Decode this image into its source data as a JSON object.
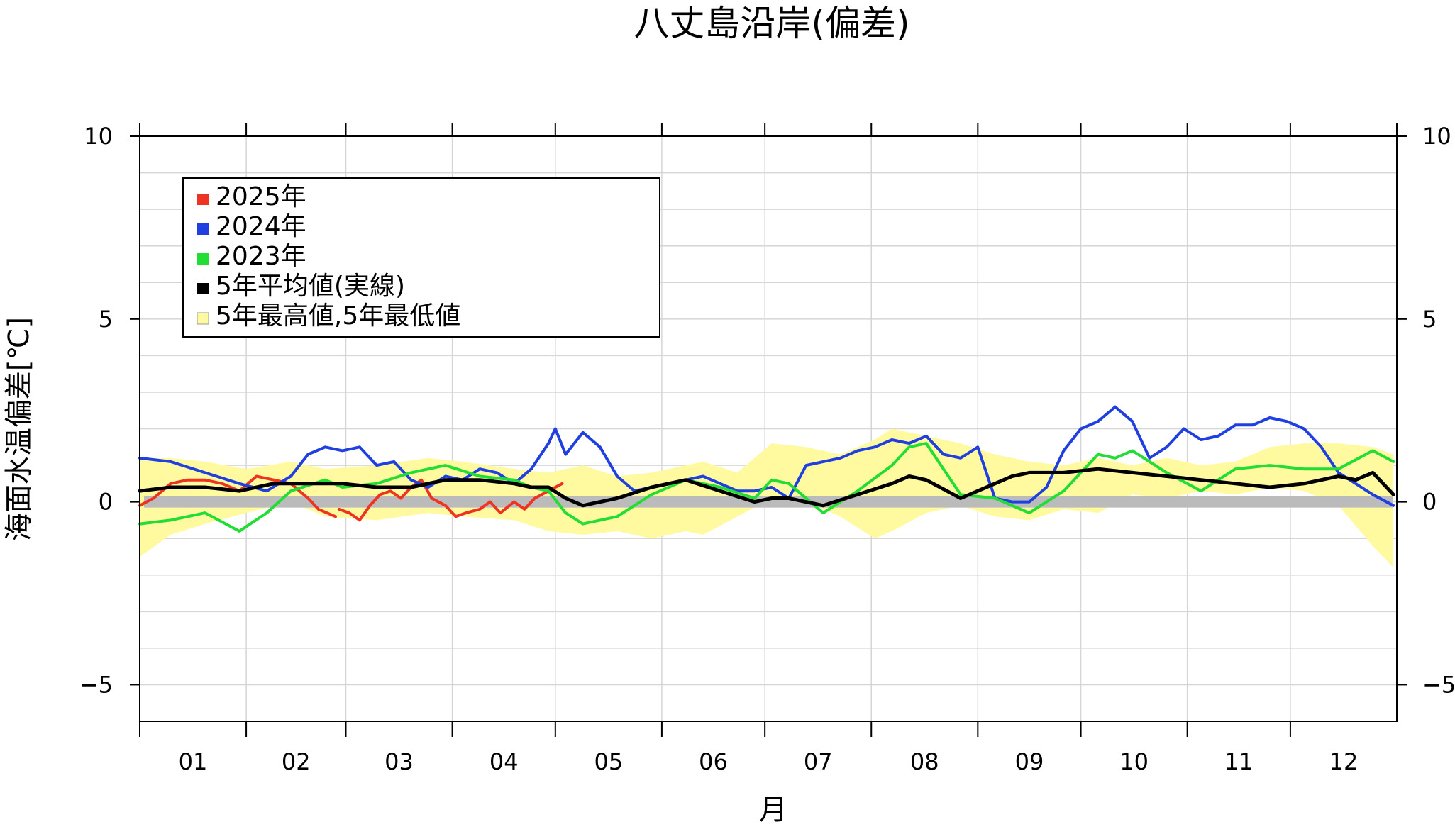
{
  "chart_data": {
    "type": "line",
    "title": "八丈島沿岸(偏差)",
    "xlabel": "月",
    "ylabel": "海面水温偏差[℃]",
    "ylim": [
      -6,
      10
    ],
    "yticks": [
      -5,
      0,
      5,
      10
    ],
    "ytick_labels": [
      "−5",
      "0",
      "5",
      "10"
    ],
    "month_labels": [
      "01",
      "02",
      "03",
      "04",
      "05",
      "06",
      "07",
      "08",
      "09",
      "10",
      "11",
      "12"
    ],
    "month_days": [
      31,
      29,
      31,
      30,
      31,
      30,
      31,
      31,
      30,
      31,
      30,
      31
    ],
    "grid": true,
    "legend_position": "top-left",
    "legend": [
      {
        "label": "2025年",
        "color": "#ee3322"
      },
      {
        "label": "2024年",
        "color": "#1f3fe0"
      },
      {
        "label": "2023年",
        "color": "#22dd33"
      },
      {
        "label": "5年平均値(実線)",
        "color": "#000000"
      },
      {
        "label": "5年最高値,5年最低値",
        "color": "#fff9a0"
      }
    ],
    "zero_band_color": "#bbbbbb",
    "band": {
      "name": "5年最高値,5年最低値",
      "color": "#fff9a0",
      "x": [
        1,
        10,
        20,
        32,
        45,
        55,
        70,
        85,
        95,
        110,
        120,
        130,
        140,
        150,
        160,
        165,
        175,
        185,
        195,
        205,
        215,
        220,
        230,
        240,
        250,
        260,
        270,
        280,
        290,
        300,
        310,
        320,
        330,
        340,
        350,
        360,
        366
      ],
      "upper": [
        1.2,
        1.2,
        1.1,
        0.9,
        1.1,
        0.9,
        1.0,
        1.2,
        1.1,
        0.9,
        0.8,
        1.0,
        0.7,
        0.8,
        1.0,
        1.1,
        0.8,
        1.6,
        1.5,
        1.3,
        1.7,
        2.0,
        1.8,
        1.6,
        1.3,
        1.1,
        1.0,
        1.2,
        1.0,
        1.2,
        1.0,
        1.1,
        1.5,
        1.6,
        1.6,
        1.5,
        1.3
      ],
      "lower": [
        -1.5,
        -0.9,
        -0.6,
        -0.3,
        0.0,
        -0.4,
        -0.5,
        -0.3,
        -0.4,
        -0.5,
        -0.8,
        -0.9,
        -0.8,
        -1.0,
        -0.8,
        -0.9,
        -0.4,
        0.1,
        0.0,
        -0.4,
        -1.0,
        -0.8,
        -0.3,
        -0.1,
        -0.4,
        -0.5,
        -0.2,
        -0.3,
        0.2,
        0.1,
        0.3,
        0.2,
        0.4,
        0.3,
        -0.1,
        -1.2,
        -1.8
      ]
    },
    "series": [
      {
        "name": "5年平均値(実線)",
        "color": "#000000",
        "width": 5,
        "x": [
          1,
          10,
          20,
          30,
          40,
          50,
          60,
          70,
          80,
          90,
          100,
          110,
          115,
          120,
          125,
          130,
          140,
          150,
          160,
          170,
          180,
          185,
          190,
          200,
          210,
          220,
          225,
          230,
          240,
          250,
          255,
          260,
          270,
          280,
          290,
          300,
          310,
          320,
          330,
          340,
          350,
          355,
          360,
          366
        ],
        "y": [
          0.3,
          0.4,
          0.4,
          0.3,
          0.5,
          0.5,
          0.5,
          0.4,
          0.4,
          0.6,
          0.6,
          0.5,
          0.4,
          0.4,
          0.1,
          -0.1,
          0.1,
          0.4,
          0.6,
          0.3,
          0.0,
          0.1,
          0.1,
          -0.1,
          0.2,
          0.5,
          0.7,
          0.6,
          0.1,
          0.5,
          0.7,
          0.8,
          0.8,
          0.9,
          0.8,
          0.7,
          0.6,
          0.5,
          0.4,
          0.5,
          0.7,
          0.6,
          0.8,
          0.2
        ]
      },
      {
        "name": "2023年",
        "color": "#22dd33",
        "width": 4,
        "x": [
          1,
          10,
          20,
          30,
          38,
          45,
          55,
          60,
          70,
          80,
          90,
          100,
          110,
          115,
          120,
          125,
          130,
          140,
          150,
          160,
          170,
          180,
          185,
          190,
          200,
          210,
          220,
          225,
          230,
          240,
          250,
          255,
          260,
          270,
          280,
          285,
          290,
          300,
          310,
          320,
          330,
          340,
          350,
          360,
          366
        ],
        "y": [
          -0.6,
          -0.5,
          -0.3,
          -0.8,
          -0.3,
          0.3,
          0.6,
          0.4,
          0.5,
          0.8,
          1.0,
          0.7,
          0.6,
          0.4,
          0.3,
          -0.3,
          -0.6,
          -0.4,
          0.2,
          0.6,
          0.4,
          0.1,
          0.6,
          0.5,
          -0.3,
          0.3,
          1.0,
          1.5,
          1.6,
          0.2,
          0.1,
          -0.1,
          -0.3,
          0.3,
          1.3,
          1.2,
          1.4,
          0.8,
          0.3,
          0.9,
          1.0,
          0.9,
          0.9,
          1.4,
          1.1
        ]
      },
      {
        "name": "2024年",
        "color": "#1f3fe0",
        "width": 4,
        "x": [
          1,
          10,
          20,
          30,
          38,
          45,
          50,
          55,
          60,
          65,
          70,
          75,
          80,
          85,
          90,
          95,
          100,
          105,
          110,
          115,
          120,
          122,
          125,
          130,
          135,
          140,
          145,
          150,
          155,
          160,
          165,
          170,
          175,
          180,
          185,
          190,
          195,
          200,
          205,
          210,
          215,
          220,
          225,
          230,
          235,
          240,
          245,
          250,
          255,
          260,
          265,
          270,
          275,
          280,
          285,
          290,
          295,
          300,
          305,
          310,
          315,
          320,
          325,
          330,
          335,
          340,
          345,
          350,
          355,
          360,
          366
        ],
        "y": [
          1.2,
          1.1,
          0.8,
          0.5,
          0.3,
          0.7,
          1.3,
          1.5,
          1.4,
          1.5,
          1.0,
          1.1,
          0.6,
          0.4,
          0.7,
          0.6,
          0.9,
          0.8,
          0.5,
          0.9,
          1.6,
          2.0,
          1.3,
          1.9,
          1.5,
          0.7,
          0.3,
          0.4,
          0.5,
          0.6,
          0.7,
          0.5,
          0.3,
          0.3,
          0.4,
          0.1,
          1.0,
          1.1,
          1.2,
          1.4,
          1.5,
          1.7,
          1.6,
          1.8,
          1.3,
          1.2,
          1.5,
          0.1,
          0.0,
          0.0,
          0.4,
          1.4,
          2.0,
          2.2,
          2.6,
          2.2,
          1.2,
          1.5,
          2.0,
          1.7,
          1.8,
          2.1,
          2.1,
          2.3,
          2.2,
          2.0,
          1.5,
          0.8,
          0.5,
          0.2,
          -0.1
        ]
      },
      {
        "name": "2025年",
        "color": "#ee3322",
        "width": 4,
        "segments": [
          {
            "x": [
              1,
              5,
              10,
              15,
              20,
              25,
              30,
              35,
              40,
              45,
              50,
              53,
              58
            ],
            "y": [
              -0.1,
              0.1,
              0.5,
              0.6,
              0.6,
              0.5,
              0.3,
              0.7,
              0.6,
              0.5,
              0.1,
              -0.2,
              -0.4
            ]
          },
          {
            "x": [
              59,
              62,
              65,
              68,
              71,
              74,
              77,
              80,
              83,
              86,
              90,
              93,
              96,
              100,
              103,
              106,
              110,
              113,
              116,
              120,
              124
            ],
            "y": [
              -0.2,
              -0.3,
              -0.5,
              -0.1,
              0.2,
              0.3,
              0.1,
              0.4,
              0.6,
              0.1,
              -0.1,
              -0.4,
              -0.3,
              -0.2,
              0.0,
              -0.3,
              0.0,
              -0.2,
              0.1,
              0.3,
              0.5
            ]
          }
        ]
      }
    ]
  }
}
